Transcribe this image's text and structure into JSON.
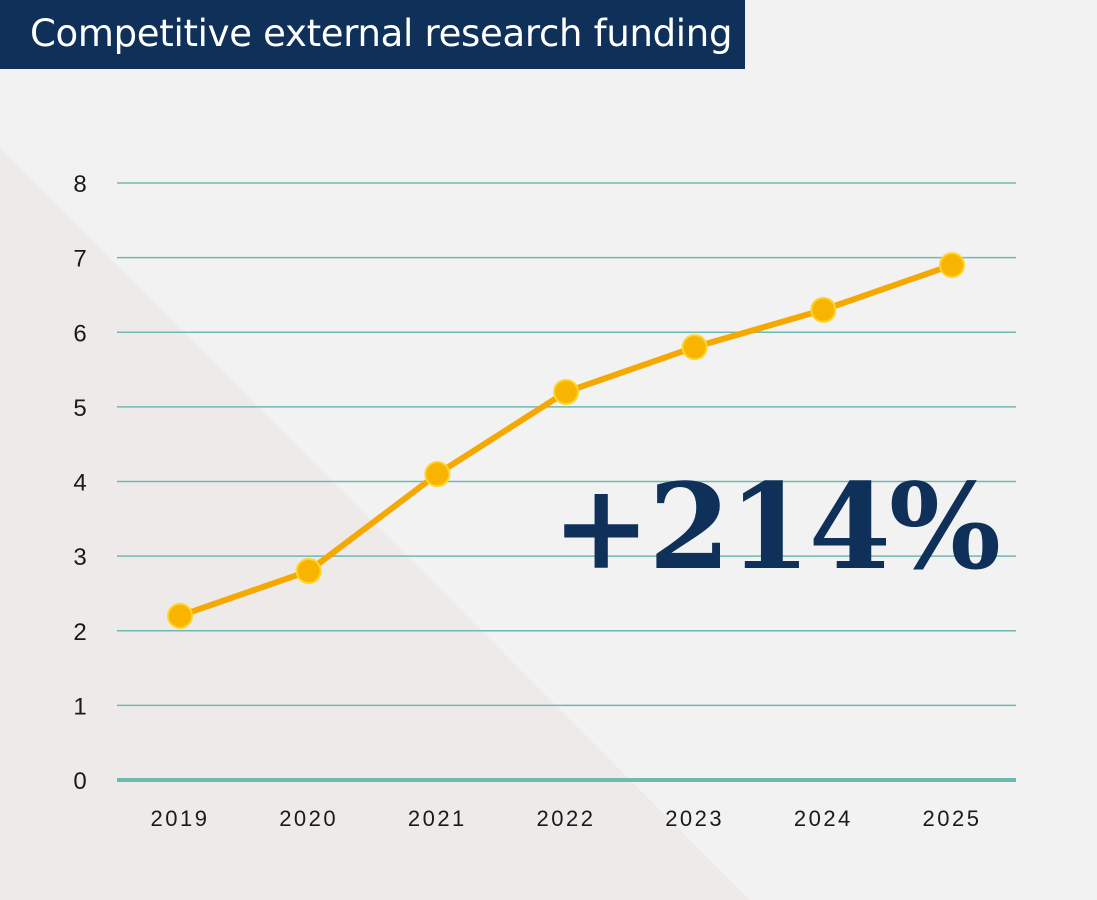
{
  "header": {
    "title": "Competitive external research funding"
  },
  "callout": {
    "text": "+214%"
  },
  "colors": {
    "title_bg": "#0f3058",
    "callout": "#0f3058",
    "line": "#f5a800",
    "marker": "#f8b400",
    "marker_edge": "#ffd52a",
    "grid": "#6fb9b0",
    "axis": "#6fb9b0",
    "background": "#f2f2f3",
    "triangle": "#eeeaea"
  },
  "chart_data": {
    "type": "line",
    "categories": [
      "2019",
      "2020",
      "2021",
      "2022",
      "2023",
      "2024",
      "2025"
    ],
    "series": [
      {
        "values": [
          2.2,
          2.8,
          4.1,
          5.2,
          5.8,
          6.3,
          6.9
        ]
      }
    ],
    "title": "",
    "xlabel": "",
    "ylabel": "",
    "ylim": [
      0,
      8
    ],
    "yticks": [
      "0",
      "1",
      "2",
      "3",
      "4",
      "5",
      "6",
      "7",
      "8"
    ],
    "grid": true,
    "legend": "none",
    "markers": "circle"
  }
}
